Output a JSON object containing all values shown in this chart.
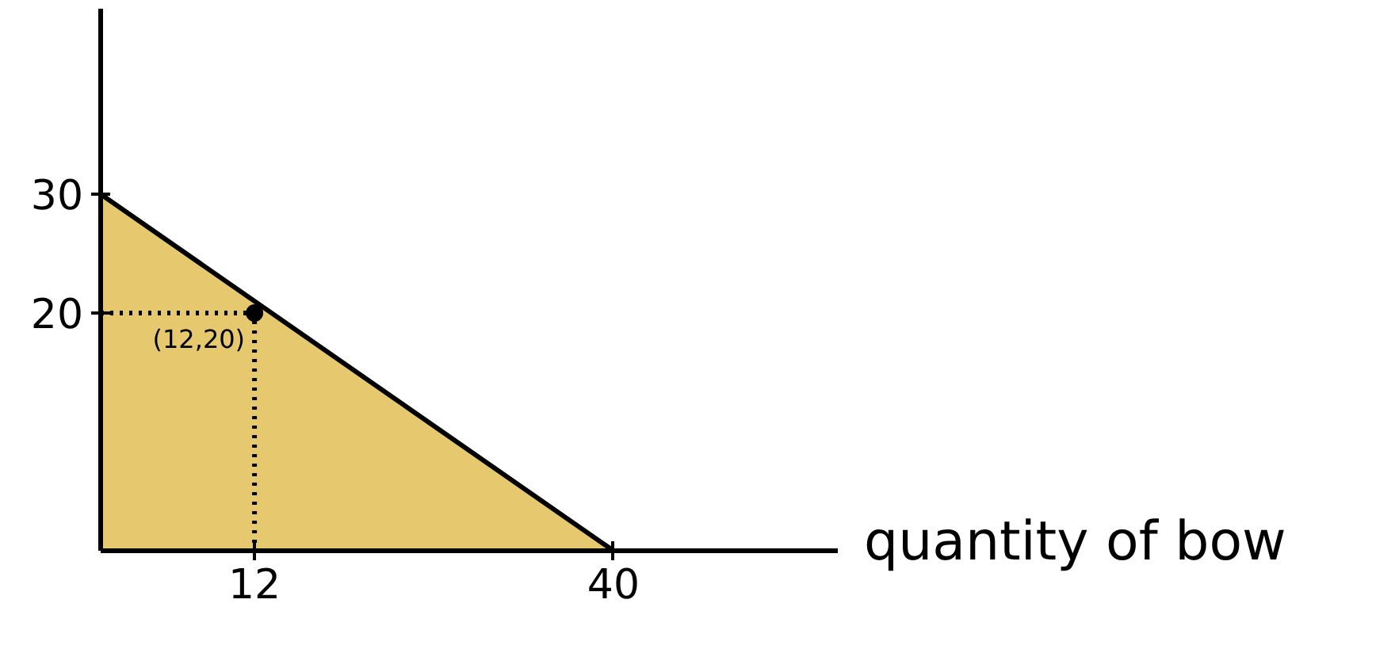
{
  "chart_data": {
    "type": "area",
    "xlabel": "quantity of bow",
    "xlim": [
      0,
      57.5
    ],
    "ylim": [
      0,
      45.6
    ],
    "xticks": [
      12,
      40
    ],
    "yticks": [
      20,
      30
    ],
    "grid": false,
    "series": [
      {
        "x": [
          0,
          40
        ],
        "values": [
          30,
          0
        ],
        "color": "#e6c86e"
      },
      {
        "type": "line",
        "x": [
          0,
          12,
          12
        ],
        "values": [
          20,
          20,
          0
        ],
        "color": "#000000",
        "line_style": "dotted"
      },
      {
        "type": "scatter",
        "x": [
          12
        ],
        "values": [
          20
        ],
        "color": "#000000",
        "marker": "circle"
      }
    ],
    "annotations": [
      {
        "text": "(12,20)",
        "x": 12,
        "y": 20
      }
    ]
  }
}
